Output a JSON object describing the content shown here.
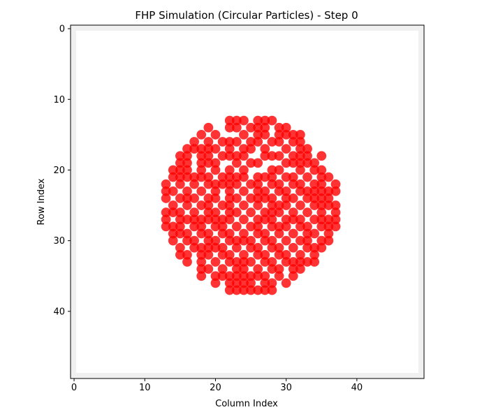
{
  "chart_data": {
    "type": "scatter",
    "title": "FHP Simulation (Circular Particles) - Step 0",
    "xlabel": "Column Index",
    "ylabel": "Row Index",
    "xlim": [
      -0.5,
      49.5
    ],
    "ylim": [
      49.5,
      -0.5
    ],
    "y_inverted": true,
    "grid": false,
    "x_ticks": [
      0,
      10,
      20,
      30,
      40
    ],
    "y_ticks": [
      0,
      10,
      20,
      30,
      40
    ],
    "background_grid_color": "#f0f0f0",
    "particle_color": "#ff0000",
    "particle_alpha": 0.8,
    "circle_center": [
      25,
      25
    ],
    "circle_radius": 12,
    "points": [
      [
        22,
        13
      ],
      [
        23,
        13
      ],
      [
        24,
        13
      ],
      [
        26,
        13
      ],
      [
        27,
        13
      ],
      [
        28,
        13
      ],
      [
        19,
        14
      ],
      [
        22,
        14
      ],
      [
        23,
        14
      ],
      [
        25,
        14
      ],
      [
        26,
        14
      ],
      [
        27,
        14
      ],
      [
        29,
        14
      ],
      [
        30,
        14
      ],
      [
        18,
        15
      ],
      [
        20,
        15
      ],
      [
        24,
        15
      ],
      [
        26,
        15
      ],
      [
        27,
        15
      ],
      [
        29,
        15
      ],
      [
        30,
        15
      ],
      [
        31,
        15
      ],
      [
        32,
        15
      ],
      [
        17,
        16
      ],
      [
        19,
        16
      ],
      [
        21,
        16
      ],
      [
        22,
        16
      ],
      [
        23,
        16
      ],
      [
        25,
        16
      ],
      [
        26,
        16
      ],
      [
        28,
        16
      ],
      [
        29,
        16
      ],
      [
        31,
        16
      ],
      [
        32,
        16
      ],
      [
        16,
        17
      ],
      [
        17,
        17
      ],
      [
        18,
        17
      ],
      [
        19,
        17
      ],
      [
        20,
        17
      ],
      [
        22,
        17
      ],
      [
        24,
        17
      ],
      [
        25,
        17
      ],
      [
        27,
        17
      ],
      [
        30,
        17
      ],
      [
        32,
        17
      ],
      [
        33,
        17
      ],
      [
        15,
        18
      ],
      [
        16,
        18
      ],
      [
        18,
        18
      ],
      [
        19,
        18
      ],
      [
        21,
        18
      ],
      [
        22,
        18
      ],
      [
        23,
        18
      ],
      [
        24,
        18
      ],
      [
        27,
        18
      ],
      [
        28,
        18
      ],
      [
        29,
        18
      ],
      [
        31,
        18
      ],
      [
        32,
        18
      ],
      [
        33,
        18
      ],
      [
        35,
        18
      ],
      [
        15,
        19
      ],
      [
        16,
        19
      ],
      [
        18,
        19
      ],
      [
        19,
        19
      ],
      [
        20,
        19
      ],
      [
        23,
        19
      ],
      [
        25,
        19
      ],
      [
        26,
        19
      ],
      [
        30,
        19
      ],
      [
        31,
        19
      ],
      [
        32,
        19
      ],
      [
        33,
        19
      ],
      [
        34,
        19
      ],
      [
        14,
        20
      ],
      [
        15,
        20
      ],
      [
        16,
        20
      ],
      [
        18,
        20
      ],
      [
        20,
        20
      ],
      [
        22,
        20
      ],
      [
        24,
        20
      ],
      [
        28,
        20
      ],
      [
        29,
        20
      ],
      [
        32,
        20
      ],
      [
        34,
        20
      ],
      [
        35,
        20
      ],
      [
        14,
        21
      ],
      [
        15,
        21
      ],
      [
        16,
        21
      ],
      [
        17,
        21
      ],
      [
        18,
        21
      ],
      [
        19,
        21
      ],
      [
        21,
        21
      ],
      [
        22,
        21
      ],
      [
        23,
        21
      ],
      [
        24,
        21
      ],
      [
        26,
        21
      ],
      [
        27,
        21
      ],
      [
        28,
        21
      ],
      [
        30,
        21
      ],
      [
        31,
        21
      ],
      [
        33,
        21
      ],
      [
        35,
        21
      ],
      [
        36,
        21
      ],
      [
        13,
        22
      ],
      [
        15,
        22
      ],
      [
        17,
        22
      ],
      [
        19,
        22
      ],
      [
        20,
        22
      ],
      [
        21,
        22
      ],
      [
        22,
        22
      ],
      [
        23,
        22
      ],
      [
        25,
        22
      ],
      [
        26,
        22
      ],
      [
        28,
        22
      ],
      [
        29,
        22
      ],
      [
        31,
        22
      ],
      [
        32,
        22
      ],
      [
        34,
        22
      ],
      [
        35,
        22
      ],
      [
        37,
        22
      ],
      [
        13,
        23
      ],
      [
        14,
        23
      ],
      [
        16,
        23
      ],
      [
        18,
        23
      ],
      [
        20,
        23
      ],
      [
        22,
        23
      ],
      [
        24,
        23
      ],
      [
        26,
        23
      ],
      [
        27,
        23
      ],
      [
        29,
        23
      ],
      [
        30,
        23
      ],
      [
        32,
        23
      ],
      [
        33,
        23
      ],
      [
        34,
        23
      ],
      [
        35,
        23
      ],
      [
        36,
        23
      ],
      [
        37,
        23
      ],
      [
        13,
        24
      ],
      [
        15,
        24
      ],
      [
        16,
        24
      ],
      [
        17,
        24
      ],
      [
        19,
        24
      ],
      [
        20,
        24
      ],
      [
        22,
        24
      ],
      [
        23,
        24
      ],
      [
        25,
        24
      ],
      [
        26,
        24
      ],
      [
        27,
        24
      ],
      [
        28,
        24
      ],
      [
        30,
        24
      ],
      [
        31,
        24
      ],
      [
        33,
        24
      ],
      [
        34,
        24
      ],
      [
        35,
        24
      ],
      [
        36,
        24
      ],
      [
        14,
        25
      ],
      [
        16,
        25
      ],
      [
        18,
        25
      ],
      [
        19,
        25
      ],
      [
        21,
        25
      ],
      [
        22,
        25
      ],
      [
        24,
        25
      ],
      [
        26,
        25
      ],
      [
        28,
        25
      ],
      [
        29,
        25
      ],
      [
        30,
        25
      ],
      [
        32,
        25
      ],
      [
        34,
        25
      ],
      [
        35,
        25
      ],
      [
        36,
        25
      ],
      [
        37,
        25
      ],
      [
        13,
        26
      ],
      [
        14,
        26
      ],
      [
        15,
        26
      ],
      [
        17,
        26
      ],
      [
        19,
        26
      ],
      [
        20,
        26
      ],
      [
        22,
        26
      ],
      [
        23,
        26
      ],
      [
        25,
        26
      ],
      [
        27,
        26
      ],
      [
        28,
        26
      ],
      [
        29,
        26
      ],
      [
        31,
        26
      ],
      [
        33,
        26
      ],
      [
        35,
        26
      ],
      [
        37,
        26
      ],
      [
        13,
        27
      ],
      [
        15,
        27
      ],
      [
        16,
        27
      ],
      [
        17,
        27
      ],
      [
        18,
        27
      ],
      [
        19,
        27
      ],
      [
        20,
        27
      ],
      [
        21,
        27
      ],
      [
        22,
        27
      ],
      [
        24,
        27
      ],
      [
        26,
        27
      ],
      [
        27,
        27
      ],
      [
        28,
        27
      ],
      [
        30,
        27
      ],
      [
        31,
        27
      ],
      [
        32,
        27
      ],
      [
        34,
        27
      ],
      [
        35,
        27
      ],
      [
        36,
        27
      ],
      [
        37,
        27
      ],
      [
        13,
        28
      ],
      [
        14,
        28
      ],
      [
        15,
        28
      ],
      [
        17,
        28
      ],
      [
        18,
        28
      ],
      [
        20,
        28
      ],
      [
        21,
        28
      ],
      [
        23,
        28
      ],
      [
        25,
        28
      ],
      [
        26,
        28
      ],
      [
        28,
        28
      ],
      [
        29,
        28
      ],
      [
        30,
        28
      ],
      [
        32,
        28
      ],
      [
        33,
        28
      ],
      [
        35,
        28
      ],
      [
        36,
        28
      ],
      [
        37,
        28
      ],
      [
        14,
        29
      ],
      [
        15,
        29
      ],
      [
        16,
        29
      ],
      [
        18,
        29
      ],
      [
        19,
        29
      ],
      [
        21,
        29
      ],
      [
        22,
        29
      ],
      [
        24,
        29
      ],
      [
        26,
        29
      ],
      [
        27,
        29
      ],
      [
        29,
        29
      ],
      [
        31,
        29
      ],
      [
        33,
        29
      ],
      [
        34,
        29
      ],
      [
        36,
        29
      ],
      [
        14,
        30
      ],
      [
        16,
        30
      ],
      [
        17,
        30
      ],
      [
        19,
        30
      ],
      [
        20,
        30
      ],
      [
        22,
        30
      ],
      [
        23,
        30
      ],
      [
        24,
        30
      ],
      [
        25,
        30
      ],
      [
        27,
        30
      ],
      [
        28,
        30
      ],
      [
        30,
        30
      ],
      [
        32,
        30
      ],
      [
        33,
        30
      ],
      [
        35,
        30
      ],
      [
        36,
        30
      ],
      [
        15,
        31
      ],
      [
        17,
        31
      ],
      [
        18,
        31
      ],
      [
        19,
        31
      ],
      [
        20,
        31
      ],
      [
        21,
        31
      ],
      [
        23,
        31
      ],
      [
        25,
        31
      ],
      [
        26,
        31
      ],
      [
        28,
        31
      ],
      [
        29,
        31
      ],
      [
        31,
        31
      ],
      [
        33,
        31
      ],
      [
        34,
        31
      ],
      [
        35,
        31
      ],
      [
        15,
        32
      ],
      [
        16,
        32
      ],
      [
        18,
        32
      ],
      [
        19,
        32
      ],
      [
        21,
        32
      ],
      [
        22,
        32
      ],
      [
        24,
        32
      ],
      [
        26,
        32
      ],
      [
        27,
        32
      ],
      [
        29,
        32
      ],
      [
        30,
        32
      ],
      [
        32,
        32
      ],
      [
        34,
        32
      ],
      [
        16,
        33
      ],
      [
        18,
        33
      ],
      [
        20,
        33
      ],
      [
        22,
        33
      ],
      [
        23,
        33
      ],
      [
        24,
        33
      ],
      [
        25,
        33
      ],
      [
        27,
        33
      ],
      [
        28,
        33
      ],
      [
        30,
        33
      ],
      [
        31,
        33
      ],
      [
        32,
        33
      ],
      [
        33,
        33
      ],
      [
        34,
        33
      ],
      [
        18,
        34
      ],
      [
        19,
        34
      ],
      [
        21,
        34
      ],
      [
        23,
        34
      ],
      [
        24,
        34
      ],
      [
        26,
        34
      ],
      [
        28,
        34
      ],
      [
        29,
        34
      ],
      [
        31,
        34
      ],
      [
        32,
        34
      ],
      [
        18,
        35
      ],
      [
        20,
        35
      ],
      [
        21,
        35
      ],
      [
        22,
        35
      ],
      [
        23,
        35
      ],
      [
        24,
        35
      ],
      [
        25,
        35
      ],
      [
        26,
        35
      ],
      [
        27,
        35
      ],
      [
        29,
        35
      ],
      [
        31,
        35
      ],
      [
        20,
        36
      ],
      [
        22,
        36
      ],
      [
        23,
        36
      ],
      [
        24,
        36
      ],
      [
        25,
        36
      ],
      [
        27,
        36
      ],
      [
        28,
        36
      ],
      [
        30,
        36
      ],
      [
        22,
        37
      ],
      [
        23,
        37
      ],
      [
        24,
        37
      ],
      [
        25,
        37
      ],
      [
        26,
        37
      ],
      [
        27,
        37
      ],
      [
        28,
        37
      ]
    ]
  }
}
